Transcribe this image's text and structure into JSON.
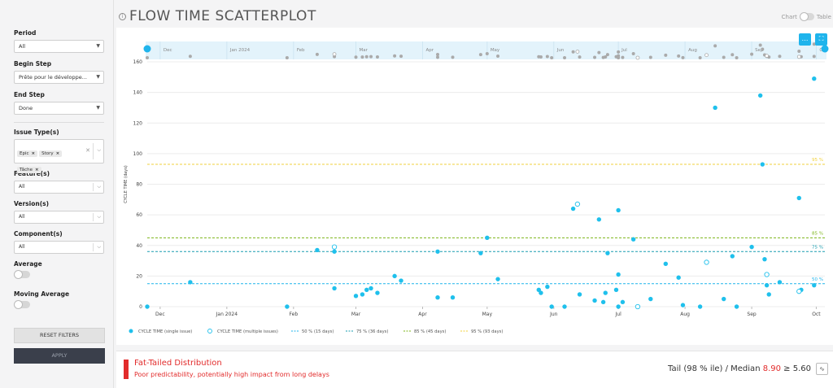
{
  "sidebar": {
    "period": {
      "label": "Period",
      "value": "All"
    },
    "begin_step": {
      "label": "Begin Step",
      "value": "Prête pour le développe..."
    },
    "end_step": {
      "label": "End Step",
      "value": "Done"
    },
    "issue_types": {
      "label": "Issue Type(s)",
      "chips": [
        "Epic",
        "Story",
        "Tâche"
      ]
    },
    "features": {
      "label": "Feature(s)",
      "value": "All"
    },
    "versions": {
      "label": "Version(s)",
      "value": "All"
    },
    "components": {
      "label": "Component(s)",
      "value": "All"
    },
    "average": {
      "label": "Average",
      "on": false
    },
    "moving_average": {
      "label": "Moving Average",
      "on": false
    },
    "reset_label": "RESET FILTERS",
    "apply_label": "APPLY"
  },
  "header": {
    "title": "FLOW TIME SCATTERPLOT",
    "view_left": "Chart",
    "view_right": "Table"
  },
  "icons": {
    "info": "info-icon",
    "zoom": "ellipsis-icon",
    "fullscreen": "fullscreen-icon",
    "tail_chart": "pulse-icon"
  },
  "chart_data": {
    "type": "scatter",
    "ylabel": "CYCLE TIME (days)",
    "ylim": [
      0,
      160
    ],
    "yticks": [
      0,
      20,
      40,
      60,
      80,
      100,
      120,
      140,
      160
    ],
    "xlim": [
      "2023-11-25",
      "2024-10-05"
    ],
    "xticks": [
      {
        "label": "Dec",
        "date": "2023-12-01"
      },
      {
        "label": "Jan 2024",
        "date": "2024-01-01"
      },
      {
        "label": "Feb",
        "date": "2024-02-01"
      },
      {
        "label": "Mar",
        "date": "2024-03-01"
      },
      {
        "label": "Apr",
        "date": "2024-04-01"
      },
      {
        "label": "May",
        "date": "2024-05-01"
      },
      {
        "label": "Jun",
        "date": "2024-06-01"
      },
      {
        "label": "Jul",
        "date": "2024-07-01"
      },
      {
        "label": "Aug",
        "date": "2024-08-01"
      },
      {
        "label": "Sep",
        "date": "2024-09-01"
      },
      {
        "label": "Oct",
        "date": "2024-10-01"
      }
    ],
    "percentiles": [
      {
        "name": "50 %",
        "value": 15,
        "color": "#1fb4ec"
      },
      {
        "name": "75 %",
        "value": 36,
        "color": "#1a9eb0"
      },
      {
        "name": "85 %",
        "value": 45,
        "color": "#7cb518"
      },
      {
        "name": "95 %",
        "value": 93,
        "color": "#f2d23c"
      }
    ],
    "series": [
      {
        "name": "CYCLE TIME (single issue)",
        "style": "filled",
        "color": "#1fc0ec",
        "points": [
          [
            "2023-11-25",
            0
          ],
          [
            "2023-12-15",
            16
          ],
          [
            "2024-01-29",
            0
          ],
          [
            "2024-02-12",
            37
          ],
          [
            "2024-02-20",
            12
          ],
          [
            "2024-02-20",
            36
          ],
          [
            "2024-03-01",
            7
          ],
          [
            "2024-03-04",
            8
          ],
          [
            "2024-03-06",
            11
          ],
          [
            "2024-03-08",
            12
          ],
          [
            "2024-03-11",
            9
          ],
          [
            "2024-03-19",
            20
          ],
          [
            "2024-03-22",
            17
          ],
          [
            "2024-04-08",
            36
          ],
          [
            "2024-04-08",
            6
          ],
          [
            "2024-04-15",
            6
          ],
          [
            "2024-04-28",
            35
          ],
          [
            "2024-05-01",
            45
          ],
          [
            "2024-05-06",
            18
          ],
          [
            "2024-05-25",
            11
          ],
          [
            "2024-05-26",
            9
          ],
          [
            "2024-05-29",
            13
          ],
          [
            "2024-05-31",
            0
          ],
          [
            "2024-06-06",
            0
          ],
          [
            "2024-06-10",
            64
          ],
          [
            "2024-06-13",
            8
          ],
          [
            "2024-06-20",
            4
          ],
          [
            "2024-06-22",
            57
          ],
          [
            "2024-06-24",
            3
          ],
          [
            "2024-06-25",
            9
          ],
          [
            "2024-06-26",
            35
          ],
          [
            "2024-06-30",
            11
          ],
          [
            "2024-07-01",
            21
          ],
          [
            "2024-07-01",
            63
          ],
          [
            "2024-07-01",
            0
          ],
          [
            "2024-07-03",
            3
          ],
          [
            "2024-07-08",
            44
          ],
          [
            "2024-07-16",
            5
          ],
          [
            "2024-07-23",
            28
          ],
          [
            "2024-07-29",
            19
          ],
          [
            "2024-07-31",
            1
          ],
          [
            "2024-08-08",
            0
          ],
          [
            "2024-08-15",
            130
          ],
          [
            "2024-08-19",
            5
          ],
          [
            "2024-08-23",
            33
          ],
          [
            "2024-08-25",
            0
          ],
          [
            "2024-09-01",
            39
          ],
          [
            "2024-09-05",
            138
          ],
          [
            "2024-09-06",
            93
          ],
          [
            "2024-09-07",
            31
          ],
          [
            "2024-09-08",
            14
          ],
          [
            "2024-09-09",
            8
          ],
          [
            "2024-09-14",
            16
          ],
          [
            "2024-09-23",
            71
          ],
          [
            "2024-09-24",
            11
          ],
          [
            "2024-09-30",
            149
          ],
          [
            "2024-09-30",
            14
          ]
        ]
      },
      {
        "name": "CYCLE TIME (multiple issues)",
        "style": "hollow",
        "color": "#1fc0ec",
        "points": [
          [
            "2024-02-20",
            39
          ],
          [
            "2024-06-12",
            67
          ],
          [
            "2024-07-10",
            0
          ],
          [
            "2024-08-11",
            29
          ],
          [
            "2024-09-08",
            21
          ],
          [
            "2024-09-23",
            10
          ]
        ]
      }
    ],
    "legend": {
      "position": "bottom-left",
      "items": [
        {
          "label": "CYCLE TIME (single issue)",
          "kind": "dot"
        },
        {
          "label": "CYCLE TIME (multiple issues)",
          "kind": "ring"
        },
        {
          "label": "50 % (15 days)",
          "kind": "dash",
          "color": "#1fb4ec"
        },
        {
          "label": "75 % (36 days)",
          "kind": "dash",
          "color": "#1a9eb0"
        },
        {
          "label": "85 % (45 days)",
          "kind": "dash",
          "color": "#7cb518"
        },
        {
          "label": "95 % (93 days)",
          "kind": "dash",
          "color": "#f2d23c"
        }
      ]
    },
    "navigator": {
      "labels": [
        {
          "label": "Dec",
          "date": "2023-12-01"
        },
        {
          "label": "Jan 2024",
          "date": "2024-01-01"
        },
        {
          "label": "Feb",
          "date": "2024-02-01"
        },
        {
          "label": "Mar",
          "date": "2024-03-01"
        },
        {
          "label": "Apr",
          "date": "2024-04-01"
        },
        {
          "label": "May",
          "date": "2024-05-01"
        },
        {
          "label": "Jun",
          "date": "2024-06-01"
        },
        {
          "label": "Jul",
          "date": "2024-07-01"
        },
        {
          "label": "Aug",
          "date": "2024-08-01"
        },
        {
          "label": "Sep",
          "date": "2024-09-01"
        },
        {
          "label": "Oct",
          "date": "2024-10-01"
        }
      ]
    }
  },
  "footer": {
    "title": "Fat-Tailed Distribution",
    "subtitle": "Poor predictability, potentially high impact from long delays",
    "tail_label": "Tail (98 % ile) / Median",
    "tail_value": "8.90",
    "tail_threshold": "≥ 5.60"
  }
}
